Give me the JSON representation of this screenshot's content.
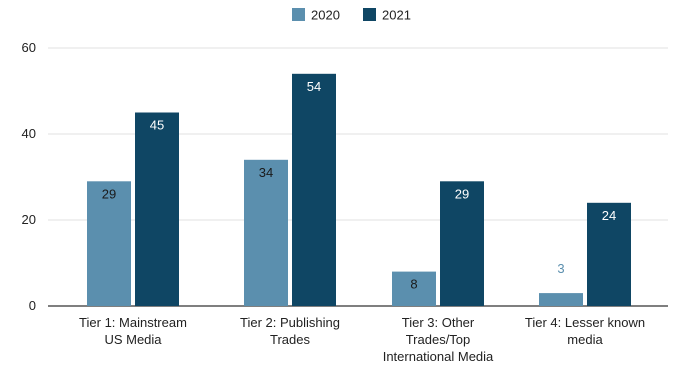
{
  "chart_data": {
    "type": "bar",
    "categories": [
      [
        "Tier 1: Mainstream",
        "US Media"
      ],
      [
        "Tier 2: Publishing",
        "Trades"
      ],
      [
        "Tier 3: Other",
        "Trades/Top",
        "International Media"
      ],
      [
        "Tier 4: Lesser known",
        "media"
      ]
    ],
    "series": [
      {
        "name": "2020",
        "values": [
          29,
          34,
          8,
          3
        ],
        "color": "#5b8fae"
      },
      {
        "name": "2021",
        "values": [
          45,
          54,
          29,
          24
        ],
        "color": "#0f4664"
      }
    ],
    "ylim": [
      0,
      60
    ],
    "yticks": [
      0,
      20,
      40,
      60
    ],
    "grid": true,
    "legend": "top-center"
  }
}
